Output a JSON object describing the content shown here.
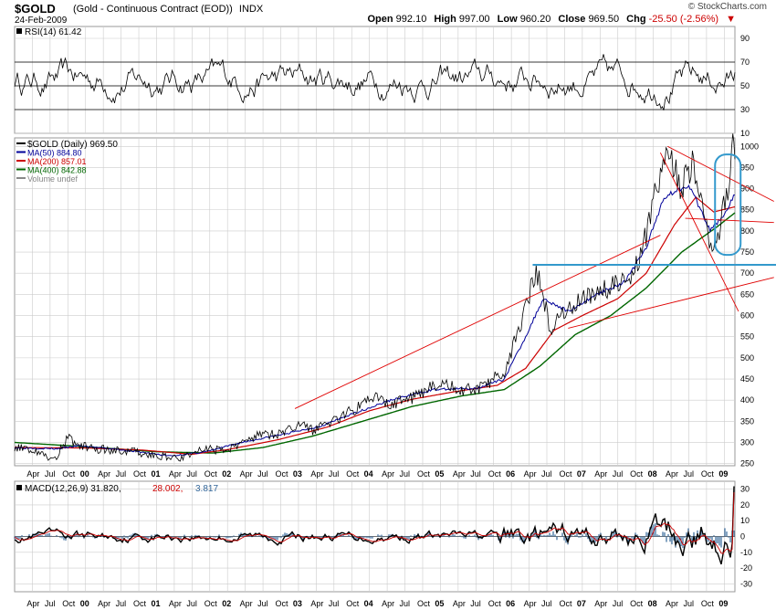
{
  "header": {
    "symbol": "$GOLD",
    "description": "(Gold - Continuous Contract (EOD))",
    "exchange": "INDX",
    "date": "24-Feb-2009",
    "brand": "© StockCharts.com",
    "open_label": "Open",
    "open": "992.10",
    "high_label": "High",
    "high": "997.00",
    "low_label": "Low",
    "low": "960.20",
    "close_label": "Close",
    "close": "969.50",
    "chg_label": "Chg",
    "chg": "-25.50 (-2.56%)"
  },
  "colors": {
    "price": "#000000",
    "ma50": "#000099",
    "ma200": "#cc0000",
    "ma400": "#006600",
    "trend": "#e00000",
    "support": "#3399cc",
    "macd_hist": "#336699",
    "grid": "#cccccc"
  },
  "chart_data": [
    {
      "type": "line",
      "title": "RSI(14) 61.42",
      "legend": [
        "RSI(14) 61.42"
      ],
      "ylim": [
        10,
        100
      ],
      "yticks": [
        90,
        70,
        50,
        30,
        10
      ],
      "reference_lines": [
        70,
        50,
        30
      ],
      "x_year_range": [
        1999.0,
        2009.15
      ],
      "series": [
        {
          "name": "RSI(14)",
          "value_last": 61.42,
          "typical_range": [
            25,
            85
          ]
        }
      ]
    },
    {
      "type": "line",
      "title": "$GOLD (Daily) 969.50",
      "legend": [
        "$GOLD (Daily) 969.50",
        "MA(50) 884.80",
        "MA(200) 857.01",
        "MA(400) 842.88",
        "Volume undef"
      ],
      "ylim": [
        245,
        1020
      ],
      "yticks": [
        1000,
        950,
        900,
        850,
        800,
        750,
        700,
        650,
        600,
        550,
        500,
        450,
        400,
        350,
        300,
        250
      ],
      "x_year_range": [
        1999.0,
        2009.15
      ],
      "series": [
        {
          "name": "$GOLD (Daily)",
          "last": 969.5,
          "points": [
            [
              1999.0,
              290
            ],
            [
              1999.3,
              282
            ],
            [
              1999.55,
              258
            ],
            [
              1999.75,
              310
            ],
            [
              1999.9,
              295
            ],
            [
              2000.1,
              285
            ],
            [
              2000.5,
              282
            ],
            [
              2000.9,
              272
            ],
            [
              2001.2,
              262
            ],
            [
              2001.45,
              268
            ],
            [
              2001.7,
              285
            ],
            [
              2002.0,
              280
            ],
            [
              2002.4,
              318
            ],
            [
              2002.8,
              322
            ],
            [
              2003.0,
              345
            ],
            [
              2003.2,
              328
            ],
            [
              2003.5,
              350
            ],
            [
              2003.9,
              390
            ],
            [
              2004.05,
              410
            ],
            [
              2004.3,
              390
            ],
            [
              2004.6,
              405
            ],
            [
              2004.95,
              440
            ],
            [
              2005.3,
              425
            ],
            [
              2005.6,
              430
            ],
            [
              2005.9,
              470
            ],
            [
              2006.1,
              560
            ],
            [
              2006.35,
              710
            ],
            [
              2006.55,
              570
            ],
            [
              2006.8,
              620
            ],
            [
              2007.0,
              640
            ],
            [
              2007.35,
              665
            ],
            [
              2007.7,
              690
            ],
            [
              2007.9,
              790
            ],
            [
              2008.0,
              880
            ],
            [
              2008.2,
              990
            ],
            [
              2008.4,
              900
            ],
            [
              2008.55,
              960
            ],
            [
              2008.75,
              800
            ],
            [
              2008.85,
              740
            ],
            [
              2008.95,
              820
            ],
            [
              2009.05,
              900
            ],
            [
              2009.12,
              1000
            ],
            [
              2009.15,
              969.5
            ]
          ]
        },
        {
          "name": "MA(50)",
          "last": 884.8,
          "points": [
            [
              1999.0,
              288
            ],
            [
              1999.6,
              285
            ],
            [
              1999.9,
              292
            ],
            [
              2000.5,
              283
            ],
            [
              2001.2,
              268
            ],
            [
              2001.7,
              278
            ],
            [
              2002.2,
              300
            ],
            [
              2002.8,
              320
            ],
            [
              2003.3,
              338
            ],
            [
              2003.8,
              370
            ],
            [
              2004.3,
              400
            ],
            [
              2004.9,
              425
            ],
            [
              2005.5,
              428
            ],
            [
              2005.9,
              450
            ],
            [
              2006.2,
              550
            ],
            [
              2006.45,
              640
            ],
            [
              2006.8,
              610
            ],
            [
              2007.2,
              650
            ],
            [
              2007.6,
              680
            ],
            [
              2007.9,
              760
            ],
            [
              2008.15,
              880
            ],
            [
              2008.5,
              910
            ],
            [
              2008.8,
              800
            ],
            [
              2009.0,
              840
            ],
            [
              2009.15,
              884.8
            ]
          ]
        },
        {
          "name": "MA(200)",
          "last": 857.01,
          "points": [
            [
              1999.0,
              288
            ],
            [
              2000.0,
              287
            ],
            [
              2000.8,
              282
            ],
            [
              2001.5,
              272
            ],
            [
              2002.0,
              283
            ],
            [
              2002.7,
              306
            ],
            [
              2003.4,
              336
            ],
            [
              2004.0,
              375
            ],
            [
              2004.6,
              402
            ],
            [
              2005.2,
              420
            ],
            [
              2005.8,
              435
            ],
            [
              2006.2,
              475
            ],
            [
              2006.6,
              565
            ],
            [
              2007.0,
              600
            ],
            [
              2007.5,
              640
            ],
            [
              2007.9,
              700
            ],
            [
              2008.3,
              815
            ],
            [
              2008.6,
              880
            ],
            [
              2008.85,
              845
            ],
            [
              2009.15,
              857.01
            ]
          ]
        },
        {
          "name": "MA(400)",
          "last": 842.88,
          "points": [
            [
              1999.0,
              300
            ],
            [
              2000.0,
              290
            ],
            [
              2001.0,
              278
            ],
            [
              2001.8,
              275
            ],
            [
              2002.5,
              288
            ],
            [
              2003.2,
              315
            ],
            [
              2003.9,
              350
            ],
            [
              2004.6,
              385
            ],
            [
              2005.3,
              410
            ],
            [
              2005.9,
              425
            ],
            [
              2006.4,
              480
            ],
            [
              2006.9,
              555
            ],
            [
              2007.4,
              600
            ],
            [
              2007.9,
              665
            ],
            [
              2008.4,
              750
            ],
            [
              2008.9,
              810
            ],
            [
              2009.15,
              842.88
            ]
          ]
        }
      ],
      "annotations": {
        "trendlines": [
          [
            [
              2002.95,
              380
            ],
            [
              2008.1,
              790
            ]
          ],
          [
            [
              2006.8,
              570
            ],
            [
              2009.7,
              690
            ]
          ],
          [
            [
              2008.45,
              830
            ],
            [
              2009.7,
              820
            ]
          ],
          [
            [
              2008.2,
              1000
            ],
            [
              2009.7,
              870
            ]
          ],
          [
            [
              2008.1,
              985
            ],
            [
              2009.2,
              610
            ]
          ]
        ],
        "support_level": 720,
        "support_start": 2006.3,
        "highlight_ellipse_center": [
          2009.05,
          860
        ]
      }
    },
    {
      "type": "line",
      "title": "MACD(12,26,9) 31.820, 28.002, 3.817",
      "legend": [
        "MACD(12,26,9) 31.820",
        "28.002",
        "3.817"
      ],
      "ylim": [
        -35,
        35
      ],
      "yticks": [
        30,
        20,
        10,
        0,
        -10,
        -20,
        -30
      ],
      "x_year_range": [
        1999.0,
        2009.15
      ],
      "series": [
        {
          "name": "MACD",
          "last": 31.82
        },
        {
          "name": "Signal",
          "last": 28.002
        },
        {
          "name": "Histogram",
          "last": 3.817
        }
      ]
    }
  ],
  "x_axis": {
    "ticks": [
      {
        "label": "Apr",
        "year": 1999.25
      },
      {
        "label": "Jul",
        "year": 1999.5
      },
      {
        "label": "Oct",
        "year": 1999.75
      },
      {
        "label": "00",
        "year": 2000.0
      },
      {
        "label": "Apr",
        "year": 2000.25
      },
      {
        "label": "Jul",
        "year": 2000.5
      },
      {
        "label": "Oct",
        "year": 2000.75
      },
      {
        "label": "01",
        "year": 2001.0
      },
      {
        "label": "Apr",
        "year": 2001.25
      },
      {
        "label": "Jul",
        "year": 2001.5
      },
      {
        "label": "Oct",
        "year": 2001.75
      },
      {
        "label": "02",
        "year": 2002.0
      },
      {
        "label": "Apr",
        "year": 2002.25
      },
      {
        "label": "Jul",
        "year": 2002.5
      },
      {
        "label": "Oct",
        "year": 2002.75
      },
      {
        "label": "03",
        "year": 2003.0
      },
      {
        "label": "Apr",
        "year": 2003.25
      },
      {
        "label": "Jul",
        "year": 2003.5
      },
      {
        "label": "Oct",
        "year": 2003.75
      },
      {
        "label": "04",
        "year": 2004.0
      },
      {
        "label": "Apr",
        "year": 2004.25
      },
      {
        "label": "Jul",
        "year": 2004.5
      },
      {
        "label": "Oct",
        "year": 2004.75
      },
      {
        "label": "05",
        "year": 2005.0
      },
      {
        "label": "Apr",
        "year": 2005.25
      },
      {
        "label": "Jul",
        "year": 2005.5
      },
      {
        "label": "Oct",
        "year": 2005.75
      },
      {
        "label": "06",
        "year": 2006.0
      },
      {
        "label": "Apr",
        "year": 2006.25
      },
      {
        "label": "Jul",
        "year": 2006.5
      },
      {
        "label": "Oct",
        "year": 2006.75
      },
      {
        "label": "07",
        "year": 2007.0
      },
      {
        "label": "Apr",
        "year": 2007.25
      },
      {
        "label": "Jul",
        "year": 2007.5
      },
      {
        "label": "Oct",
        "year": 2007.75
      },
      {
        "label": "08",
        "year": 2008.0
      },
      {
        "label": "Apr",
        "year": 2008.25
      },
      {
        "label": "Jul",
        "year": 2008.5
      },
      {
        "label": "Oct",
        "year": 2008.75
      },
      {
        "label": "09",
        "year": 2009.0
      }
    ]
  }
}
